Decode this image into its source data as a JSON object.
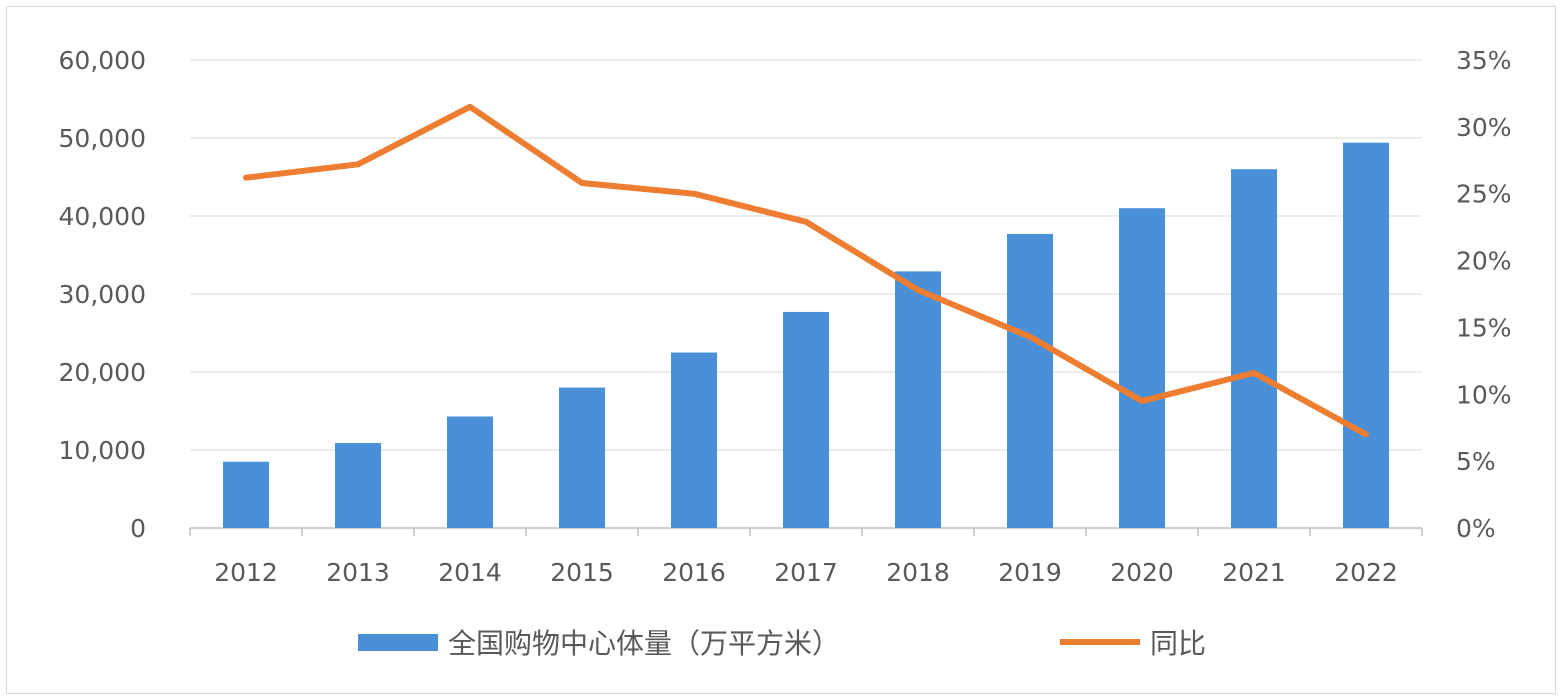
{
  "chart_data": {
    "type": "bar",
    "categories": [
      "2012",
      "2013",
      "2014",
      "2015",
      "2016",
      "2017",
      "2018",
      "2019",
      "2020",
      "2021",
      "2022"
    ],
    "series": [
      {
        "name": "全国购物中心体量（万平方米）",
        "type": "bar",
        "axis": "left",
        "color": "#4a90d9",
        "values": [
          8500,
          10900,
          14300,
          18000,
          22500,
          27700,
          32900,
          37700,
          41000,
          46000,
          49400
        ]
      },
      {
        "name": "同比",
        "type": "line",
        "axis": "right",
        "color": "#ed7d31",
        "values": [
          26.2,
          27.2,
          31.5,
          25.8,
          25.0,
          22.9,
          17.8,
          14.3,
          9.5,
          11.6,
          7.0
        ]
      }
    ],
    "left_axis": {
      "ylim": [
        0,
        60000
      ],
      "ticks": [
        "0",
        "10,000",
        "20,000",
        "30,000",
        "40,000",
        "50,000",
        "60,000"
      ]
    },
    "right_axis": {
      "ylim": [
        0,
        35
      ],
      "ticks": [
        "0%",
        "5%",
        "10%",
        "15%",
        "20%",
        "25%",
        "30%",
        "35%"
      ]
    },
    "grid": true,
    "legend_position": "bottom"
  }
}
